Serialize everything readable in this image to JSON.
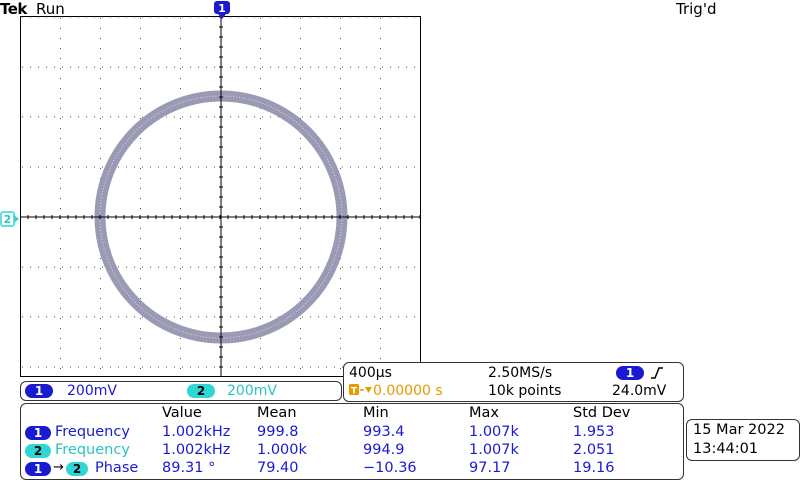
{
  "header": {
    "brand": "Tek",
    "run_state": "Run",
    "trigger_status": "Trig'd"
  },
  "markers": {
    "ch1_label": "1",
    "ch2_label": "2"
  },
  "channels": [
    {
      "label": "1",
      "scale": "200mV",
      "color": "#1a1ad0"
    },
    {
      "label": "2",
      "scale": "200mV",
      "color": "#2fd6d6"
    }
  ],
  "timebase": {
    "time_per_div": "400µs",
    "sample_rate": "2.50MS/s",
    "trigger_position": "0.00000 s",
    "record_length": "10k points",
    "trigger_source": "1",
    "trigger_slope_icon": "rising-edge-icon",
    "trigger_level": "24.0mV"
  },
  "measurements": {
    "headers": [
      "Value",
      "Mean",
      "Min",
      "Max",
      "Std Dev"
    ],
    "rows": [
      {
        "src1": "1",
        "src2": "",
        "name": "Frequency",
        "value": "1.002kHz",
        "mean": "999.8",
        "min": "993.4",
        "max": "1.007k",
        "std": "1.953"
      },
      {
        "src1": "2",
        "src2": "",
        "name": "Frequency",
        "value": "1.002kHz",
        "mean": "1.000k",
        "min": "994.9",
        "max": "1.007k",
        "std": "2.051"
      },
      {
        "src1": "1",
        "src2": "2",
        "name": "Phase",
        "value": "89.31 °",
        "mean": "79.40",
        "min": "−10.36",
        "max": "97.17",
        "std": "19.16"
      }
    ]
  },
  "datetime": {
    "date": "15 Mar 2022",
    "time": "13:44:01"
  },
  "display": {
    "mode": "XY",
    "trace_color": "#9a9ab4"
  }
}
